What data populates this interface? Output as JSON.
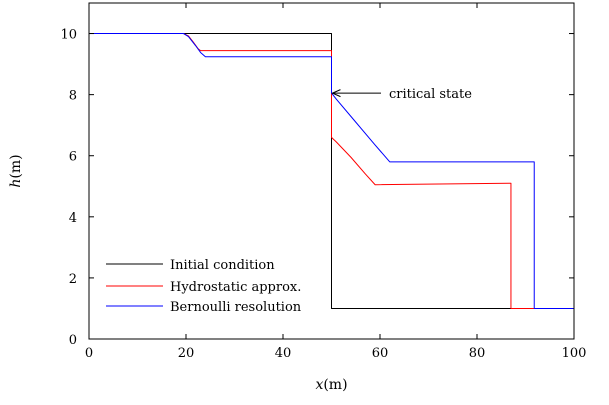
{
  "chart_data": {
    "type": "line",
    "title": "",
    "xlabel": {
      "var": "x",
      "unit": "(m)"
    },
    "ylabel": {
      "var": "h",
      "unit": "(m)"
    },
    "xlim": [
      0,
      100
    ],
    "ylim": [
      0,
      11
    ],
    "xticks": [
      "0",
      "20",
      "40",
      "60",
      "80",
      "100"
    ],
    "yticks": [
      "0",
      "2",
      "4",
      "6",
      "8",
      "10"
    ],
    "grid": false,
    "legend_position": "bottom-left",
    "series": [
      {
        "name": "Initial condition",
        "color": "#000000",
        "points": [
          [
            0,
            10
          ],
          [
            50,
            10
          ],
          [
            50,
            1
          ],
          [
            100,
            1
          ]
        ]
      },
      {
        "name": "Hydrostatic approx.",
        "color": "#ff0000",
        "points": [
          [
            0,
            10
          ],
          [
            19.5,
            10
          ],
          [
            20.5,
            9.92
          ],
          [
            21.5,
            9.72
          ],
          [
            22.5,
            9.5
          ],
          [
            23,
            9.44
          ],
          [
            50,
            9.44
          ],
          [
            50,
            6.6
          ],
          [
            51,
            6.45
          ],
          [
            54,
            5.95
          ],
          [
            57,
            5.4
          ],
          [
            59,
            5.05
          ],
          [
            87,
            5.1
          ],
          [
            87,
            1
          ],
          [
            100,
            1
          ]
        ]
      },
      {
        "name": "Bernoulli resolution",
        "color": "#0000ff",
        "points": [
          [
            0,
            10
          ],
          [
            19.5,
            10
          ],
          [
            20.5,
            9.9
          ],
          [
            22,
            9.6
          ],
          [
            23,
            9.38
          ],
          [
            24,
            9.24
          ],
          [
            50,
            9.24
          ],
          [
            50,
            8.05
          ],
          [
            51,
            7.85
          ],
          [
            55,
            7.1
          ],
          [
            59,
            6.35
          ],
          [
            62,
            5.8
          ],
          [
            91.8,
            5.8
          ],
          [
            91.8,
            1
          ],
          [
            100,
            1
          ]
        ]
      }
    ],
    "annotations": [
      {
        "text": "critical state",
        "arrow_to": [
          50.2,
          8.05
        ]
      }
    ]
  }
}
